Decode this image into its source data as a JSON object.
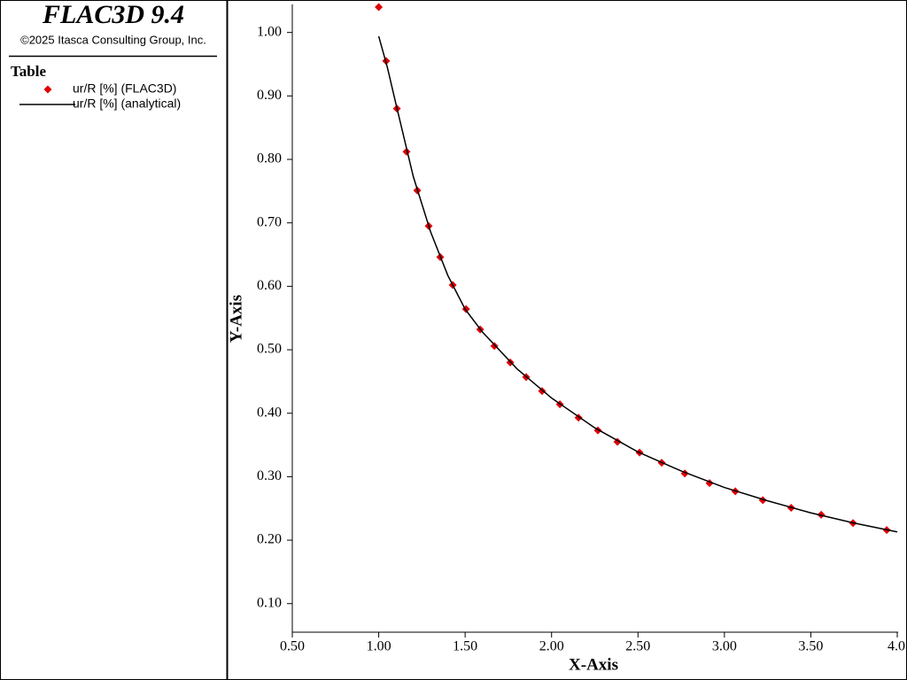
{
  "chart_data": {
    "type": "scatter",
    "title": "FLAC3D 9.4",
    "subtitle": "©2025 Itasca Consulting Group, Inc.",
    "legend_title": "Table",
    "x_label": "X-Axis",
    "y_label": "Y-Axis",
    "xlim": [
      0.5,
      4.0
    ],
    "ylim": [
      0.055,
      1.04
    ],
    "xticks": [
      {
        "value": 0.5,
        "label": "0.50"
      },
      {
        "value": 1,
        "label": "1.00"
      },
      {
        "value": 1.5,
        "label": "1.50"
      },
      {
        "value": 2,
        "label": "2.00"
      },
      {
        "value": 2.5,
        "label": "2.50"
      },
      {
        "value": 3,
        "label": "3.00"
      },
      {
        "value": 3.5,
        "label": "3.50"
      },
      {
        "value": 4,
        "label": "4.0"
      }
    ],
    "yticks": [
      {
        "value": 0.1,
        "label": "0.10"
      },
      {
        "value": 0.2,
        "label": "0.20"
      },
      {
        "value": 0.3,
        "label": "0.30"
      },
      {
        "value": 0.4,
        "label": "0.40"
      },
      {
        "value": 0.5,
        "label": "0.50"
      },
      {
        "value": 0.6,
        "label": "0.60"
      },
      {
        "value": 0.7,
        "label": "0.70"
      },
      {
        "value": 0.8,
        "label": "0.80"
      },
      {
        "value": 0.9,
        "label": "0.90"
      },
      {
        "value": 1,
        "label": "1.00"
      }
    ],
    "grid": false,
    "series": [
      {
        "name": "ur/R [%] (FLAC3D)",
        "color": "#e00000",
        "mode": "markers",
        "x": [
          1.0,
          1.043,
          1.105,
          1.161,
          1.223,
          1.289,
          1.356,
          1.428,
          1.505,
          1.587,
          1.669,
          1.761,
          1.853,
          1.945,
          2.048,
          2.156,
          2.268,
          2.381,
          2.509,
          2.637,
          2.771,
          2.914,
          3.063,
          3.222,
          3.386,
          3.56,
          3.744,
          3.939
        ],
        "values": [
          1.04,
          0.955,
          0.88,
          0.812,
          0.751,
          0.695,
          0.646,
          0.602,
          0.564,
          0.532,
          0.506,
          0.48,
          0.457,
          0.435,
          0.414,
          0.393,
          0.373,
          0.355,
          0.338,
          0.322,
          0.305,
          0.29,
          0.277,
          0.263,
          0.251,
          0.24,
          0.227,
          0.216
        ]
      },
      {
        "name": "ur/R [%] (analytical)",
        "color": "#000000",
        "mode": "line",
        "x": [
          1.0,
          1.05,
          1.1,
          1.2,
          1.3,
          1.4,
          1.5,
          1.6,
          1.8,
          2.0,
          2.25,
          2.5,
          2.75,
          3.0,
          3.25,
          3.5,
          3.75,
          4.0
        ],
        "values": [
          0.994,
          0.945,
          0.887,
          0.773,
          0.686,
          0.617,
          0.564,
          0.528,
          0.47,
          0.424,
          0.377,
          0.339,
          0.309,
          0.283,
          0.262,
          0.243,
          0.227,
          0.213
        ]
      }
    ]
  }
}
